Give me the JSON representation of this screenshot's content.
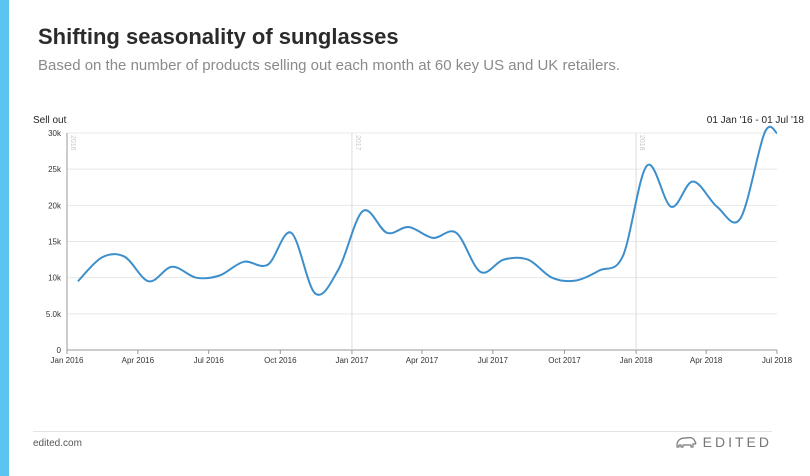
{
  "header": {
    "title": "Shifting seasonality of sunglasses",
    "subtitle": "Based on the number of products selling out each month at 60 key US and UK retailers."
  },
  "footer": {
    "site": "edited.com",
    "brand": "EDITED",
    "brand_icon": "bear-logo-icon"
  },
  "colors": {
    "accent": "#5bc4f0",
    "line": "#3d8fcc",
    "grid": "#e8e8e8"
  },
  "chart_data": {
    "type": "line",
    "title": "Shifting seasonality of sunglasses",
    "ylabel": "Sell out",
    "range_label": "01 Jan '16 - 01 Jul '18",
    "ylim": [
      0,
      30000
    ],
    "yticks": [
      0,
      5000,
      10000,
      15000,
      20000,
      25000,
      30000
    ],
    "ytick_labels": [
      "0",
      "5.0k",
      "10k",
      "15k",
      "20k",
      "25k",
      "30k"
    ],
    "xticks": [
      "2016-01-01",
      "2016-04-01",
      "2016-07-01",
      "2016-10-01",
      "2017-01-01",
      "2017-04-01",
      "2017-07-01",
      "2017-10-01",
      "2018-01-01",
      "2018-04-01",
      "2018-07-01"
    ],
    "xtick_labels": [
      "Jan 2016",
      "Apr 2016",
      "Jul 2016",
      "Oct 2016",
      "Jan 2017",
      "Apr 2017",
      "Jul 2017",
      "Oct 2017",
      "Jan 2018",
      "Apr 2018",
      "Jul 2018"
    ],
    "year_markers": [
      {
        "date": "2016-01-01",
        "label": "2016"
      },
      {
        "date": "2017-01-01",
        "label": "2017"
      },
      {
        "date": "2018-01-01",
        "label": "2018"
      }
    ],
    "x": [
      "2016-01-15",
      "2016-02-15",
      "2016-03-15",
      "2016-04-15",
      "2016-05-15",
      "2016-06-15",
      "2016-07-15",
      "2016-08-15",
      "2016-09-15",
      "2016-10-15",
      "2016-11-15",
      "2016-12-15",
      "2017-01-15",
      "2017-02-15",
      "2017-03-15",
      "2017-04-15",
      "2017-05-15",
      "2017-06-15",
      "2017-07-15",
      "2017-08-15",
      "2017-09-15",
      "2017-10-15",
      "2017-11-15",
      "2017-12-15",
      "2018-01-15",
      "2018-02-15",
      "2018-03-15",
      "2018-04-15",
      "2018-05-15",
      "2018-06-15",
      "2018-07-01"
    ],
    "values": [
      9500,
      12800,
      12900,
      9500,
      11500,
      10000,
      10300,
      12200,
      11800,
      16200,
      7800,
      11200,
      19200,
      16200,
      17000,
      15500,
      16200,
      10800,
      12500,
      12500,
      10000,
      9600,
      11000,
      13000,
      25500,
      19800,
      23300,
      19800,
      18200,
      30000,
      30000
    ],
    "grid": true,
    "legend": "none"
  }
}
